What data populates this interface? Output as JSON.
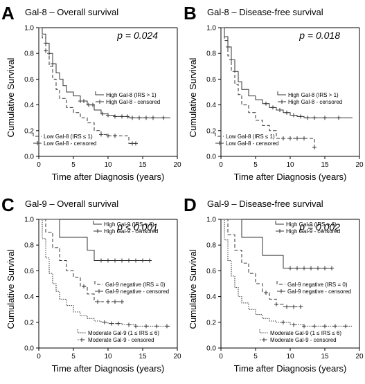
{
  "chart_data": [
    {
      "type": "line",
      "letter": "A",
      "title": "Gal-8 – Overall survival",
      "p_value": "p = 0.024",
      "xlabel": "Time after Diagnosis (years)",
      "ylabel": "Cumulative Survival",
      "xlim": [
        0,
        20
      ],
      "ylim": [
        0,
        1
      ],
      "xticks": [
        0,
        5,
        10,
        15,
        20
      ],
      "yticks": [
        0.0,
        0.2,
        0.4,
        0.6,
        0.8,
        1.0
      ],
      "legend": [
        {
          "series": 0,
          "line_label": "High Gal-8 (IRS > 1)",
          "censor_label": "High Gal-8 - censored",
          "placement": "right"
        },
        {
          "series": 1,
          "line_label": "Low Gal-8 (IRS ≤ 1)",
          "censor_label": "Low Gal-8 - censored",
          "placement": "left"
        }
      ],
      "series": [
        {
          "name": "High Gal-8 (IRS > 1)",
          "style": "solid",
          "x": [
            0,
            0.5,
            1,
            1.5,
            2,
            2.5,
            3,
            3.5,
            4,
            5,
            6,
            7,
            8,
            9,
            10,
            11,
            13,
            14,
            19
          ],
          "y": [
            1.0,
            0.95,
            0.88,
            0.8,
            0.72,
            0.65,
            0.6,
            0.55,
            0.5,
            0.47,
            0.43,
            0.4,
            0.36,
            0.33,
            0.32,
            0.31,
            0.3,
            0.3,
            0.3
          ],
          "censored_x": [
            1.0,
            1.5,
            2.0,
            6.0,
            6.5,
            7.2,
            7.8,
            9.2,
            10,
            11,
            12,
            12.8,
            13.5,
            14.5,
            15.5,
            16.5,
            18
          ]
        },
        {
          "name": "Low Gal-8 (IRS ≤ 1)",
          "style": "dashed",
          "x": [
            0,
            0.5,
            1,
            1.5,
            2,
            2.5,
            3,
            4,
            5,
            6,
            7,
            8,
            9,
            10,
            11,
            12,
            13,
            14
          ],
          "y": [
            1.0,
            0.92,
            0.82,
            0.7,
            0.6,
            0.52,
            0.45,
            0.38,
            0.34,
            0.3,
            0.26,
            0.2,
            0.17,
            0.16,
            0.16,
            0.16,
            0.1,
            0.1
          ],
          "censored_x": [
            1.0,
            9.0,
            10,
            11,
            13.5,
            14
          ]
        }
      ]
    },
    {
      "type": "line",
      "letter": "B",
      "title": "Gal-8 – Disease-free survival",
      "p_value": "p = 0.018",
      "xlabel": "Time after Diagnosis (years)",
      "ylabel": "Cumulative Survival",
      "xlim": [
        0,
        20
      ],
      "ylim": [
        0,
        1
      ],
      "xticks": [
        0,
        5,
        10,
        15,
        20
      ],
      "yticks": [
        0.0,
        0.2,
        0.4,
        0.6,
        0.8,
        1.0
      ],
      "legend": [
        {
          "series": 0,
          "line_label": "High Gal-8 (IRS > 1)",
          "censor_label": "High Gal-8 - censored",
          "placement": "right"
        },
        {
          "series": 1,
          "line_label": "Low Gal-8 (IRS ≤ 1)",
          "censor_label": "Low Gal-8 - censored",
          "placement": "left"
        }
      ],
      "series": [
        {
          "name": "High Gal-8 (IRS > 1)",
          "style": "solid",
          "x": [
            0,
            0.5,
            1,
            1.5,
            2,
            2.5,
            3,
            4,
            5,
            6,
            7,
            8,
            9,
            10,
            11,
            12,
            19
          ],
          "y": [
            1.0,
            0.93,
            0.85,
            0.75,
            0.66,
            0.58,
            0.52,
            0.47,
            0.44,
            0.41,
            0.38,
            0.36,
            0.34,
            0.32,
            0.31,
            0.3,
            0.3
          ],
          "censored_x": [
            1.0,
            1.5,
            6.5,
            7.5,
            8.5,
            9.5,
            10.5,
            11.5,
            12.5,
            13.5,
            15,
            17
          ]
        },
        {
          "name": "Low Gal-8 (IRS ≤ 1)",
          "style": "dashed",
          "x": [
            0,
            0.5,
            1,
            1.5,
            2,
            2.5,
            3,
            4,
            5,
            6,
            7,
            8,
            13,
            13.5
          ],
          "y": [
            1.0,
            0.9,
            0.78,
            0.66,
            0.56,
            0.48,
            0.4,
            0.34,
            0.28,
            0.24,
            0.2,
            0.14,
            0.14,
            0.07
          ],
          "censored_x": [
            9,
            10,
            11,
            12,
            13.5
          ]
        }
      ]
    },
    {
      "type": "line",
      "letter": "C",
      "title": "Gal-9 – Overall survival",
      "p_value": "p < 0.001",
      "xlabel": "Time after Diagnosis (years)",
      "ylabel": "Cumulative Survival",
      "xlim": [
        0,
        20
      ],
      "ylim": [
        0,
        1
      ],
      "xticks": [
        0,
        5,
        10,
        15,
        20
      ],
      "yticks": [
        0.0,
        0.2,
        0.4,
        0.6,
        0.8,
        1.0
      ],
      "legend": [
        {
          "series": 0,
          "line_label": "High Gal-9 (IRS > 6)",
          "censor_label": "High Gal-9 - censored",
          "placement": "upper-right"
        },
        {
          "series": 1,
          "line_label": "Gal-9 negative (IRS = 0)",
          "censor_label": "Gal-9 negative - censored",
          "placement": "middle-right"
        },
        {
          "series": 2,
          "line_label": "Moderate Gal-9 (1 ≤ IRS ≤ 6)",
          "censor_label": "Moderate Gal-9 - censored",
          "placement": "lower-right"
        }
      ],
      "series": [
        {
          "name": "High Gal-9 (IRS > 6)",
          "style": "solid",
          "x": [
            0,
            2,
            3,
            7,
            8,
            16
          ],
          "y": [
            1.0,
            1.0,
            0.86,
            0.76,
            0.68,
            0.68
          ],
          "censored_x": [
            9,
            10,
            11,
            12,
            13,
            14,
            15,
            16
          ]
        },
        {
          "name": "Gal-9 negative (IRS = 0)",
          "style": "dashed",
          "x": [
            0,
            1,
            2,
            3,
            4,
            5,
            6,
            7,
            8,
            12
          ],
          "y": [
            1.0,
            0.9,
            0.78,
            0.68,
            0.6,
            0.55,
            0.48,
            0.42,
            0.36,
            0.36
          ],
          "censored_x": [
            6.5,
            8.5,
            10,
            11,
            12
          ]
        },
        {
          "name": "Moderate Gal-9 (1 ≤ IRS ≤ 6)",
          "style": "dotted",
          "x": [
            0,
            0.5,
            1,
            1.5,
            2,
            2.5,
            3,
            4,
            5,
            6,
            7,
            8,
            9,
            10,
            12,
            14,
            19
          ],
          "y": [
            1.0,
            0.85,
            0.7,
            0.58,
            0.5,
            0.44,
            0.38,
            0.33,
            0.28,
            0.25,
            0.23,
            0.21,
            0.2,
            0.19,
            0.18,
            0.17,
            0.17
          ],
          "censored_x": [
            9.5,
            10.5,
            11.5,
            13,
            14,
            15.5,
            17,
            18.5
          ]
        }
      ]
    },
    {
      "type": "line",
      "letter": "D",
      "title": "Gal-9 – Disease-free survival",
      "p_value": "p = 0.002",
      "xlabel": "Time after Diagnosis (years)",
      "ylabel": "Cumulative Survival",
      "xlim": [
        0,
        20
      ],
      "ylim": [
        0,
        1
      ],
      "xticks": [
        0,
        5,
        10,
        15,
        20
      ],
      "yticks": [
        0.0,
        0.2,
        0.4,
        0.6,
        0.8,
        1.0
      ],
      "legend": [
        {
          "series": 0,
          "line_label": "High Gal-9 (IRS > 6)",
          "censor_label": "High Gal-9 - censored",
          "placement": "upper-right"
        },
        {
          "series": 1,
          "line_label": "Gal-9 negative (IRS = 0)",
          "censor_label": "Gal-9 negative - censored",
          "placement": "middle-right"
        },
        {
          "series": 2,
          "line_label": "Moderate Gal-9 (1 ≤ IRS ≤ 6)",
          "censor_label": "Moderate Gal-9 - censored",
          "placement": "lower-right"
        }
      ],
      "series": [
        {
          "name": "High Gal-9 (IRS > 6)",
          "style": "solid",
          "x": [
            0,
            2,
            3,
            6,
            9,
            16
          ],
          "y": [
            1.0,
            1.0,
            0.86,
            0.72,
            0.62,
            0.62
          ],
          "censored_x": [
            10,
            11,
            12,
            13,
            14,
            15,
            16
          ]
        },
        {
          "name": "Gal-9 negative (IRS = 0)",
          "style": "dashed",
          "x": [
            0,
            1,
            2,
            3,
            4,
            5,
            6,
            7,
            8,
            9,
            12
          ],
          "y": [
            1.0,
            0.88,
            0.76,
            0.66,
            0.58,
            0.5,
            0.43,
            0.38,
            0.34,
            0.32,
            0.32
          ],
          "censored_x": [
            6.5,
            8,
            9.5,
            10.5,
            11.5
          ]
        },
        {
          "name": "Moderate Gal-9 (1 ≤ IRS ≤ 6)",
          "style": "dotted",
          "x": [
            0,
            0.5,
            1,
            1.5,
            2,
            2.5,
            3,
            4,
            5,
            6,
            7,
            8,
            10,
            12,
            14,
            19
          ],
          "y": [
            1.0,
            0.84,
            0.68,
            0.56,
            0.47,
            0.4,
            0.35,
            0.3,
            0.26,
            0.23,
            0.21,
            0.2,
            0.18,
            0.17,
            0.17,
            0.17
          ],
          "censored_x": [
            9,
            10.5,
            12,
            13.5,
            15,
            16.5,
            18
          ]
        }
      ]
    }
  ]
}
